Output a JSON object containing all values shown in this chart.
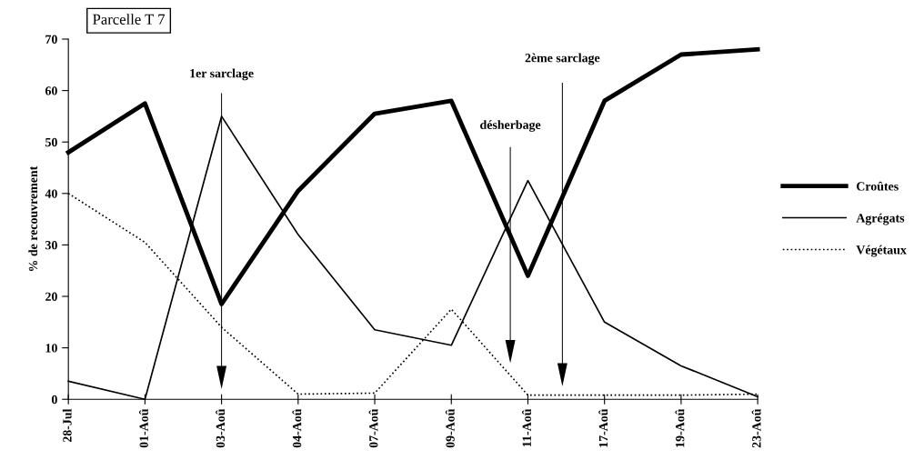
{
  "chart_data": {
    "type": "line",
    "title": "Parcelle T 7",
    "ylabel": "% de recouvrement",
    "categories": [
      "28-Jul",
      "01-Aoû",
      "03-Aoû",
      "04-Aoû",
      "07-Aoû",
      "09-Aoû",
      "11-Aoû",
      "17-Aoû",
      "19-Aoû",
      "23-Aoû"
    ],
    "series": [
      {
        "name": "Croûtes",
        "color": "#000000",
        "line_style": "solid",
        "values": [
          48,
          57.5,
          18.5,
          40.5,
          55.5,
          58,
          24,
          58,
          67,
          68
        ]
      },
      {
        "name": "Agrégats",
        "color": "#000000",
        "line_style": "solid",
        "values": [
          3.5,
          0,
          55,
          32,
          13.5,
          10.5,
          42.5,
          15,
          6.5,
          0.5
        ]
      },
      {
        "name": "Végétaux",
        "color": "#000000",
        "line_style": "dotted",
        "values": [
          40,
          30.5,
          14,
          1,
          1.2,
          17.5,
          0.8,
          0.8,
          0.8,
          1
        ]
      }
    ],
    "ylim": [
      0,
      70
    ],
    "yticks": [
      0,
      10,
      20,
      30,
      40,
      50,
      60,
      70
    ],
    "annotations": [
      "1er sarclage",
      "désherbage",
      "2ème sarclage"
    ],
    "legend": "right",
    "grid": false,
    "marker": "none"
  }
}
